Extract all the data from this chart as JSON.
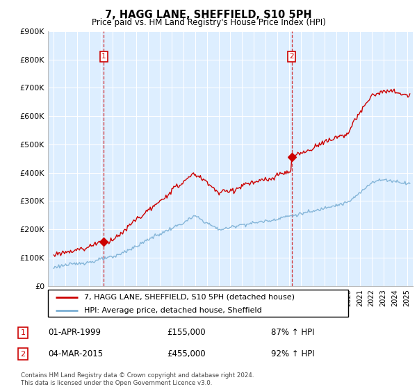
{
  "title": "7, HAGG LANE, SHEFFIELD, S10 5PH",
  "subtitle": "Price paid vs. HM Land Registry's House Price Index (HPI)",
  "purchase1_date": "01-APR-1999",
  "purchase1_price": 155000,
  "purchase1_hpi": "87% ↑ HPI",
  "purchase2_date": "04-MAR-2015",
  "purchase2_price": 455000,
  "purchase2_hpi": "92% ↑ HPI",
  "legend_line1": "7, HAGG LANE, SHEFFIELD, S10 5PH (detached house)",
  "legend_line2": "HPI: Average price, detached house, Sheffield",
  "footnote": "Contains HM Land Registry data © Crown copyright and database right 2024.\nThis data is licensed under the Open Government Licence v3.0.",
  "line_color_red": "#cc0000",
  "line_color_blue": "#7bafd4",
  "vline_color": "#cc0000",
  "bg_color": "#ffffff",
  "plot_bg_color": "#ddeeff",
  "grid_color": "#ffffff",
  "ylim": [
    0,
    900000
  ],
  "xlim_start": 1994.5,
  "xlim_end": 2025.5
}
